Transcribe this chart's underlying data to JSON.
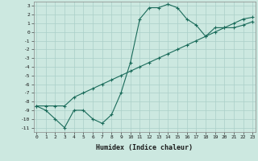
{
  "title": "",
  "xlabel": "Humidex (Indice chaleur)",
  "bg_color": "#cce8e0",
  "grid_color": "#aacfc8",
  "line_color": "#1a6b5a",
  "curve1_x": [
    0,
    1,
    2,
    3,
    4,
    5,
    6,
    7,
    8,
    9,
    10,
    11,
    12,
    13,
    14,
    15,
    16,
    17,
    18,
    19,
    20,
    21,
    22,
    23
  ],
  "curve1_y": [
    -8.5,
    -9.0,
    -10.0,
    -11.0,
    -9.0,
    -9.0,
    -10.0,
    -10.5,
    -9.5,
    -7.0,
    -3.5,
    1.5,
    2.8,
    2.8,
    3.2,
    2.8,
    1.5,
    0.8,
    -0.5,
    0.5,
    0.5,
    0.5,
    0.8,
    1.2
  ],
  "curve2_x": [
    0,
    1,
    2,
    3,
    4,
    5,
    6,
    7,
    8,
    9,
    10,
    11,
    12,
    13,
    14,
    15,
    16,
    17,
    18,
    19,
    20,
    21,
    22,
    23
  ],
  "curve2_y": [
    -8.5,
    -8.5,
    -8.5,
    -8.5,
    -7.5,
    -7.0,
    -6.5,
    -6.0,
    -5.5,
    -5.0,
    -4.5,
    -4.0,
    -3.5,
    -3.0,
    -2.5,
    -2.0,
    -1.5,
    -1.0,
    -0.5,
    0.0,
    0.5,
    1.0,
    1.5,
    1.7
  ],
  "ylim": [
    -11.5,
    3.5
  ],
  "xlim": [
    -0.3,
    23.3
  ],
  "yticks": [
    3,
    2,
    1,
    0,
    -1,
    -2,
    -3,
    -4,
    -5,
    -6,
    -7,
    -8,
    -9,
    -10,
    -11
  ],
  "xticks": [
    0,
    1,
    2,
    3,
    4,
    5,
    6,
    7,
    8,
    9,
    10,
    11,
    12,
    13,
    14,
    15,
    16,
    17,
    18,
    19,
    20,
    21,
    22,
    23
  ],
  "tick_fontsize": 4.5,
  "xlabel_fontsize": 6.0
}
